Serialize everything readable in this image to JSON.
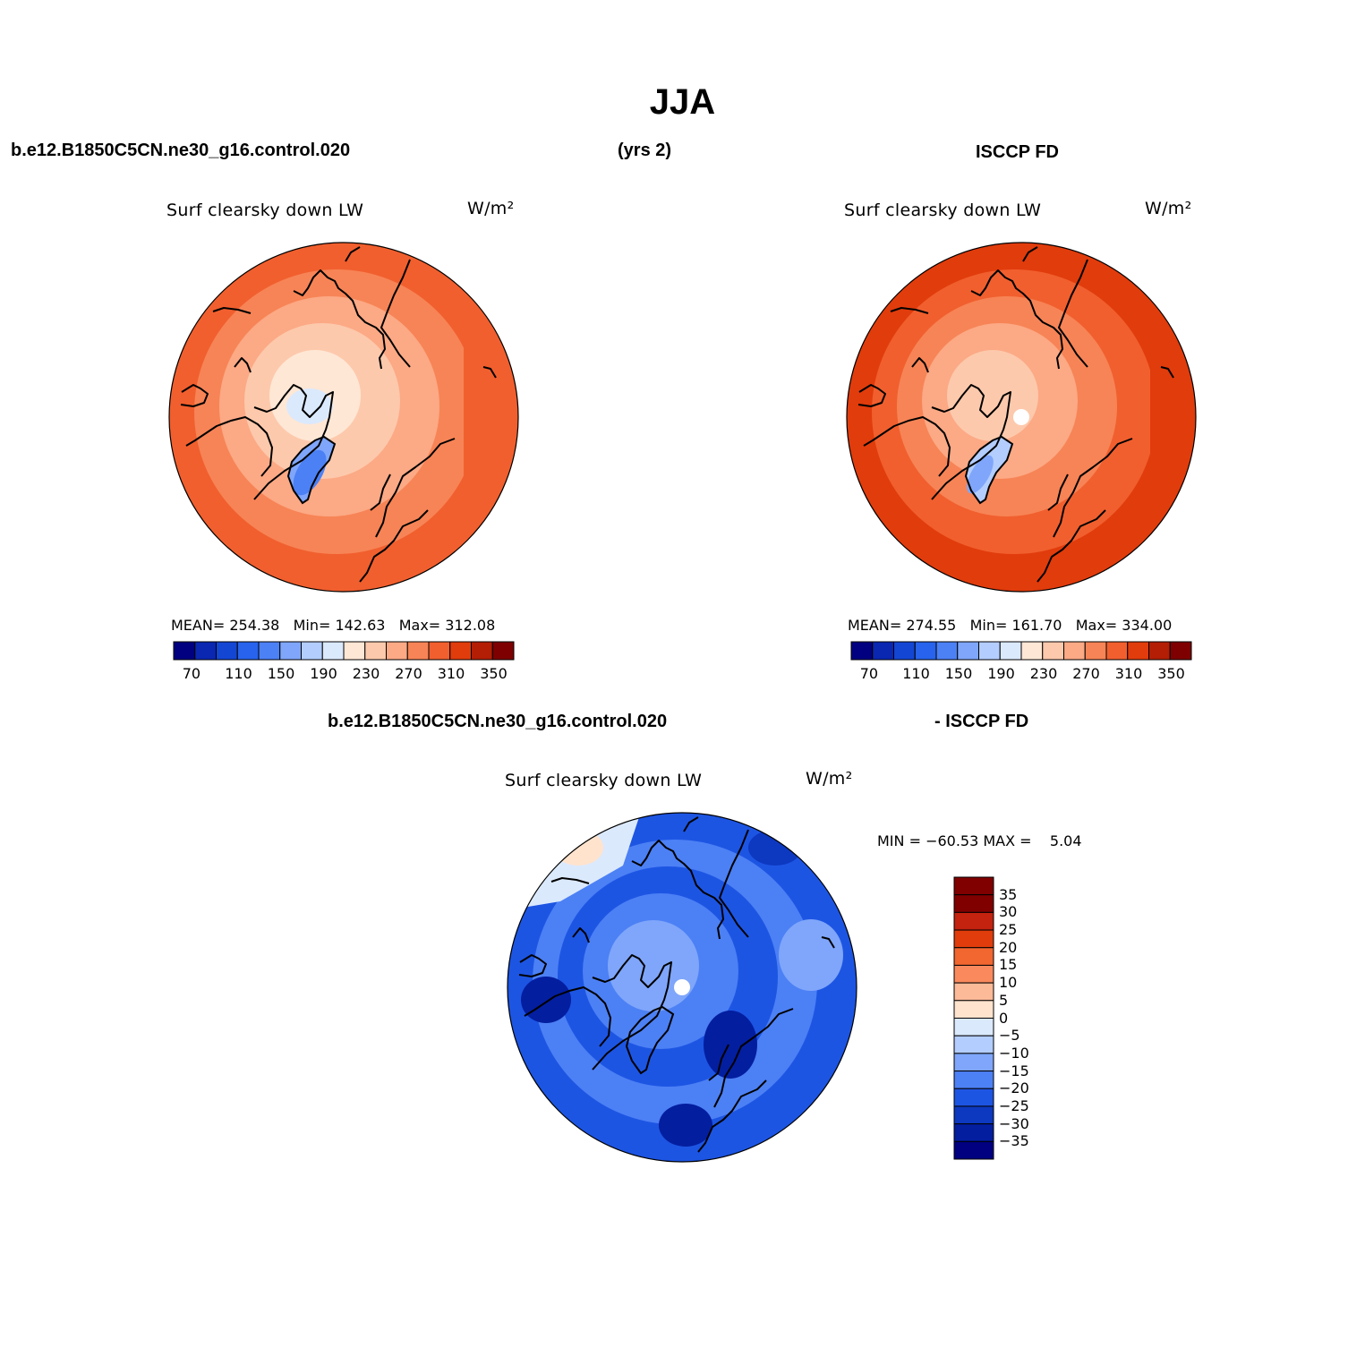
{
  "figure": {
    "title": "JJA",
    "case_name": "b.e12.B1850C5CN.ne30_g16.control.020",
    "years": "(yrs 2)",
    "obs_name": "ISCCP FD",
    "diff_case_name": "b.e12.B1850C5CN.ne30_g16.control.020",
    "diff_obs_name": "- ISCCP FD"
  },
  "colors": {
    "seq_scale": [
      "#000080",
      "#0a27b2",
      "#1446d4",
      "#2763ec",
      "#4c80f5",
      "#7fa6fa",
      "#b3cdfe",
      "#dbe9fd",
      "#ffe7d5",
      "#fdc9ac",
      "#fca985",
      "#f78456",
      "#f15f2e",
      "#e13c0c",
      "#b31e05",
      "#7e0000"
    ],
    "diff_scale": [
      "#800000",
      "#c3230f",
      "#e13c0c",
      "#f26630",
      "#fa8a5e",
      "#fdba98",
      "#ffe3cd",
      "#dbe9fd",
      "#b3cdfe",
      "#7fa6fa",
      "#4c80f5",
      "#1d55e3",
      "#0d38c0",
      "#041ea0",
      "#000080"
    ],
    "coastline": "#000000",
    "missing": "#ffffff"
  },
  "panels": [
    {
      "variable": "Surf clearsky down LW",
      "units": "W/m²",
      "mean_label": "MEAN=",
      "mean": "254.38",
      "min_label": "Min=",
      "min": "142.63",
      "max_label": "Max=",
      "max": "312.08",
      "colorbar_ticks": [
        "70",
        "110",
        "150",
        "190",
        "230",
        "270",
        "310",
        "350"
      ]
    },
    {
      "variable": "Surf clearsky down LW",
      "units": "W/m²",
      "mean_label": "MEAN=",
      "mean": "274.55",
      "min_label": "Min=",
      "min": "161.70",
      "max_label": "Max=",
      "max": "334.00",
      "colorbar_ticks": [
        "70",
        "110",
        "150",
        "190",
        "230",
        "270",
        "310",
        "350"
      ]
    },
    {
      "variable": "Surf clearsky down LW",
      "units": "W/m²",
      "minmax_label": "MIN = −60.53 MAX =    5.04",
      "colorbar_ticks": [
        "35",
        "30",
        "25",
        "20",
        "15",
        "10",
        "5",
        "0",
        "−5",
        "−10",
        "−15",
        "−20",
        "−25",
        "−30",
        "−35"
      ]
    }
  ]
}
